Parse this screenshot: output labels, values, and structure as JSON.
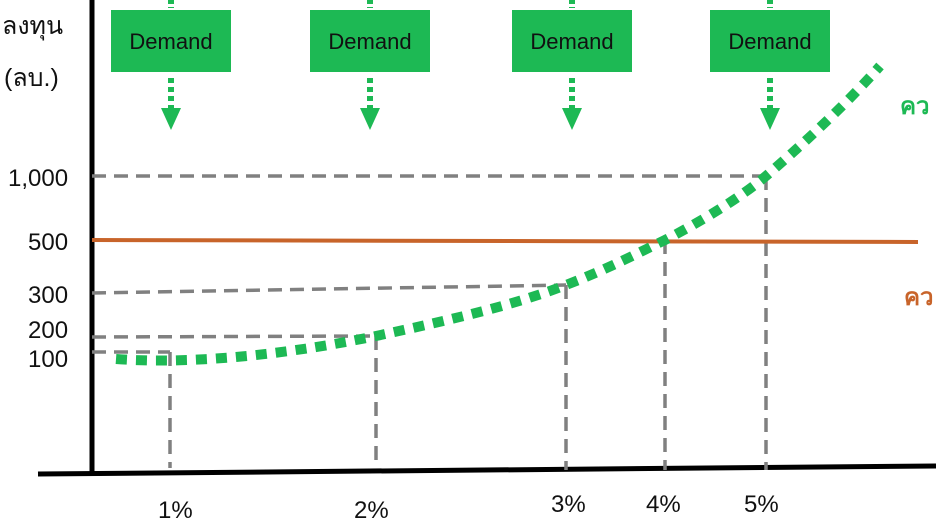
{
  "chart_data": {
    "type": "line",
    "ylabel": [
      "ลงทุน",
      "(ลบ.)"
    ],
    "x_ticks": [
      "1%",
      "2%",
      "3%",
      "4%",
      "5%"
    ],
    "y_ticks": [
      "100",
      "200",
      "300",
      "500",
      "1,000"
    ],
    "demand_label": "Demand",
    "demand_count": 4,
    "series": [
      {
        "color": "#1db954",
        "label": "คว",
        "style": "dotted",
        "points": [
          [
            1,
            100
          ],
          [
            2,
            200
          ],
          [
            3,
            300
          ],
          [
            4,
            500
          ],
          [
            5,
            1000
          ]
        ]
      },
      {
        "color": "#c8642a",
        "label": "คว",
        "style": "solid",
        "value": 500
      }
    ]
  }
}
